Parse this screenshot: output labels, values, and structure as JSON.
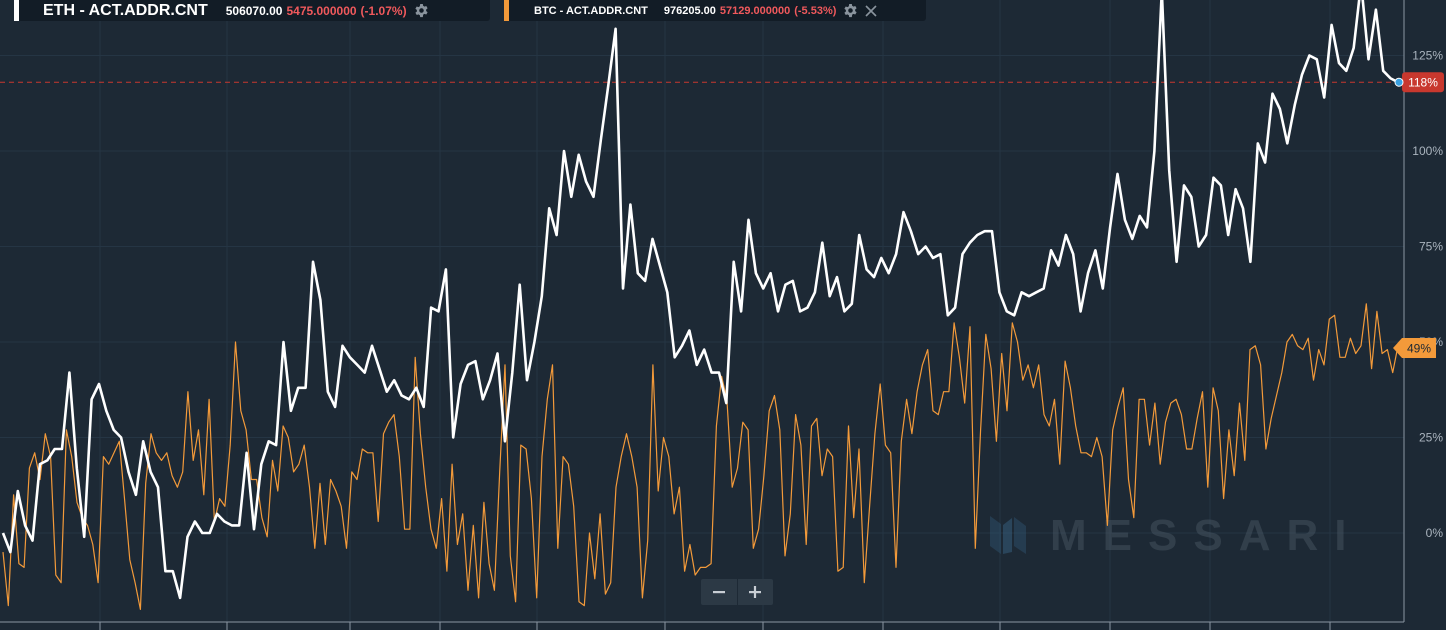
{
  "legend": {
    "eth": {
      "name": "ETH - ACT.ADDR.CNT",
      "value": "506070.00",
      "change": "5475.000000",
      "change_pct": "(-1.07%)",
      "color": "#ffffff"
    },
    "btc": {
      "name": "BTC - ACT.ADDR.CNT",
      "value": "976205.00",
      "change": "57129.000000",
      "change_pct": "(-5.53%)",
      "color": "#f39a3a"
    },
    "settings_icon": "gear-icon",
    "close_icon": "close-icon",
    "negative_color": "#f0595c"
  },
  "watermark": "MESSARI",
  "zoom": {
    "out_icon": "minus-icon",
    "in_icon": "plus-icon"
  },
  "chart_data": {
    "type": "line",
    "y_unit": "%",
    "y_ticks": [
      "0%",
      "25%",
      "50%",
      "75%",
      "100%",
      "125%"
    ],
    "y_tick_values": [
      0,
      25,
      50,
      75,
      100,
      125
    ],
    "ylim": [
      -22,
      140
    ],
    "grid": true,
    "background": "#1d2935",
    "reference_line": {
      "value": 118,
      "color": "#c8382e"
    },
    "series": [
      {
        "name": "ETH - ACT.ADDR.CNT",
        "color": "#ffffff",
        "last_label": "118%",
        "label_color": "#c8382e",
        "values": [
          0,
          -5,
          11,
          2,
          -2,
          18,
          19,
          22,
          22,
          42,
          17,
          -1,
          35,
          39,
          32,
          27,
          25,
          16,
          10,
          24,
          16,
          12,
          -10,
          -10,
          -17,
          -1,
          3,
          0,
          0,
          5,
          3,
          2,
          2,
          21,
          1,
          18,
          24,
          23,
          50,
          32,
          38,
          38,
          71,
          61,
          37,
          33,
          49,
          46,
          44,
          42,
          49,
          43,
          37,
          40,
          36,
          35,
          38,
          33,
          59,
          58,
          69,
          25,
          39,
          44,
          45,
          35,
          40,
          47,
          24,
          42,
          65,
          40,
          50,
          62,
          85,
          78,
          100,
          88,
          99,
          92,
          88,
          103,
          117,
          132,
          64,
          86,
          68,
          66,
          77,
          70,
          63,
          46,
          49,
          53,
          44,
          48,
          42,
          42,
          34,
          71,
          58,
          82,
          68,
          64,
          68,
          58,
          65,
          66,
          58,
          59,
          63,
          76,
          62,
          67,
          58,
          60,
          78,
          69,
          67,
          72,
          68,
          73,
          84,
          79,
          73,
          75,
          72,
          73,
          57,
          59,
          73,
          76,
          78,
          79,
          79,
          63,
          58,
          57,
          63,
          62,
          63,
          64,
          74,
          70,
          78,
          73,
          58,
          68,
          74,
          64,
          80,
          94,
          82,
          77,
          83,
          80,
          100,
          142,
          95,
          71,
          91,
          88,
          75,
          78,
          93,
          91,
          78,
          90,
          85,
          71,
          102,
          97,
          115,
          111,
          102,
          112,
          120,
          125,
          124,
          114,
          133,
          123,
          121,
          127,
          144,
          124,
          137,
          121,
          119,
          118
        ]
      },
      {
        "name": "BTC - ACT.ADDR.CNT",
        "color": "#f39a3a",
        "last_label": "49%",
        "label_color": "#f39a3a",
        "values": [
          -5,
          -19,
          10,
          -8,
          -9,
          17,
          21,
          14,
          26,
          20,
          -11,
          -13,
          27,
          20,
          8,
          4,
          2,
          -3,
          -13,
          20,
          18,
          21,
          24,
          9,
          -7,
          -13,
          -20,
          13,
          26,
          21,
          19,
          21,
          15,
          12,
          16,
          37,
          19,
          27,
          10,
          35,
          3,
          9,
          7,
          23,
          50,
          32,
          27,
          14,
          14,
          4,
          -1,
          19,
          11,
          28,
          25,
          16,
          18,
          23,
          12,
          -4,
          13,
          -3,
          14,
          11,
          7,
          -4,
          16,
          14,
          22,
          21,
          21,
          3,
          26,
          29,
          31,
          20,
          1,
          1,
          46,
          26,
          12,
          1,
          -4,
          9,
          -10,
          18,
          -3,
          5,
          -15,
          2,
          -17,
          8,
          -8,
          -15,
          16,
          44,
          -6,
          -18,
          23,
          22,
          9,
          -17,
          20,
          35,
          44,
          -4,
          20,
          18,
          7,
          -18,
          -19,
          0,
          -12,
          5,
          -16,
          -13,
          12,
          20,
          26,
          20,
          12,
          -17,
          -2,
          44,
          11,
          25,
          20,
          5,
          12,
          -10,
          -3,
          -11,
          -9,
          -9,
          -8,
          28,
          41,
          35,
          12,
          17,
          29,
          27,
          -4,
          1,
          15,
          32,
          36,
          27,
          -6,
          5,
          31,
          23,
          -3,
          28,
          30,
          15,
          22,
          20,
          -10,
          -9,
          28,
          4,
          22,
          -13,
          7,
          26,
          39,
          23,
          21,
          -9,
          24,
          35,
          26,
          37,
          44,
          48,
          32,
          31,
          37,
          37,
          55,
          46,
          34,
          54,
          -4,
          27,
          52,
          43,
          24,
          47,
          32,
          55,
          50,
          40,
          44,
          38,
          44,
          31,
          28,
          35,
          18,
          45,
          38,
          28,
          21,
          21,
          20,
          25,
          20,
          2,
          27,
          33,
          38,
          14,
          4,
          35,
          35,
          23,
          34,
          18,
          29,
          34,
          35,
          31,
          22,
          22,
          30,
          37,
          12,
          38,
          32,
          9,
          27,
          15,
          34,
          19,
          48,
          49,
          44,
          22,
          30,
          36,
          42,
          50,
          52,
          49,
          48,
          51,
          40,
          48,
          44,
          56,
          57,
          46,
          46,
          51,
          47,
          49,
          60,
          43,
          58,
          47,
          48,
          42,
          49
        ]
      }
    ]
  }
}
